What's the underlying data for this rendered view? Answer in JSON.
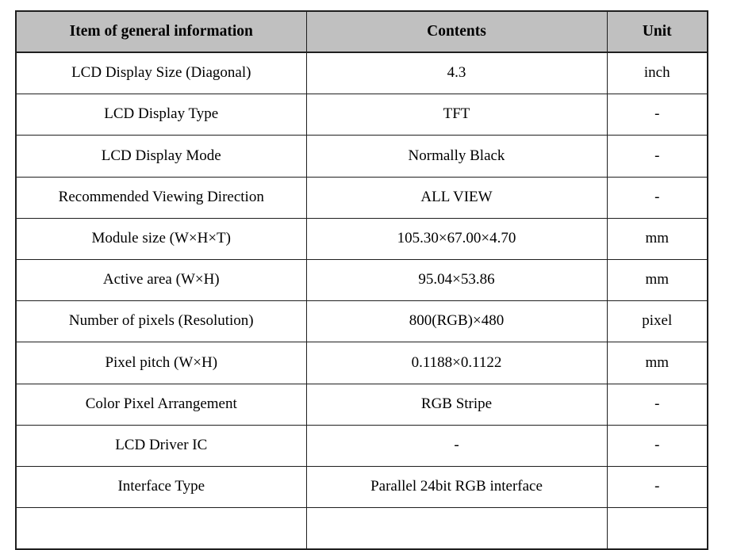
{
  "page": {
    "background": "#ffffff",
    "header_bg": "#c0c0c0",
    "border_color": "#1f1f1f"
  },
  "table": {
    "columns": [
      {
        "label": "Item of general information"
      },
      {
        "label": "Contents"
      },
      {
        "label": "Unit"
      }
    ],
    "rows": [
      {
        "item": "LCD Display Size (Diagonal)",
        "contents": "4.3",
        "unit": "inch"
      },
      {
        "item": "LCD Display Type",
        "contents": "TFT",
        "unit": "-"
      },
      {
        "item": "LCD Display Mode",
        "contents": "Normally Black",
        "unit": "-"
      },
      {
        "item": "Recommended Viewing Direction",
        "contents": "ALL VIEW",
        "unit": "-"
      },
      {
        "item": "Module size (W×H×T)",
        "contents": "105.30×67.00×4.70",
        "unit": "mm"
      },
      {
        "item": "Active area (W×H)",
        "contents": "95.04×53.86",
        "unit": "mm"
      },
      {
        "item": "Number of pixels (Resolution)",
        "contents": "800(RGB)×480",
        "unit": "pixel"
      },
      {
        "item": "Pixel pitch (W×H)",
        "contents": "0.1188×0.1122",
        "unit": "mm"
      },
      {
        "item": "Color Pixel Arrangement",
        "contents": "RGB Stripe",
        "unit": "-"
      },
      {
        "item": "LCD Driver IC",
        "contents": "-",
        "unit": "-"
      },
      {
        "item": "Interface Type",
        "contents": "Parallel 24bit RGB interface",
        "unit": "-"
      },
      {
        "item": "",
        "contents": "",
        "unit": ""
      }
    ]
  }
}
